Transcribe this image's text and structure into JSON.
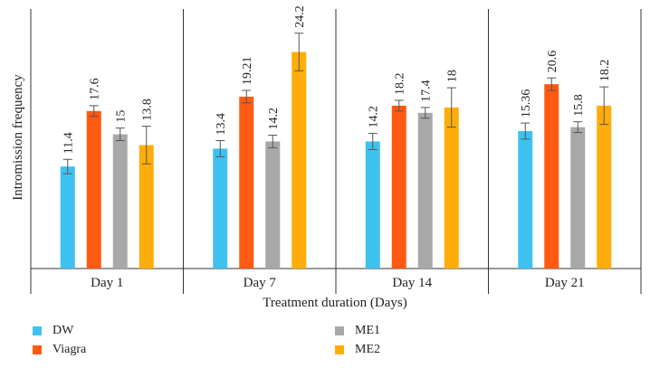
{
  "chart_data": {
    "type": "bar",
    "title": "",
    "xlabel": "Treatment duration (Days)",
    "ylabel": "Intromission frequency",
    "categories": [
      "Day 1",
      "Day 7",
      "Day 14",
      "Day 21"
    ],
    "ylim": [
      0,
      29
    ],
    "grid": false,
    "series": [
      {
        "name": "DW",
        "color": "#3fc1ef",
        "values": [
          11.4,
          13.4,
          14.2,
          15.36
        ],
        "labels": [
          "11.4",
          "13.4",
          "14.2",
          "15.36"
        ],
        "errors": [
          0.8,
          0.9,
          0.9,
          0.9
        ]
      },
      {
        "name": "Viagra",
        "color": "#ff5a12",
        "values": [
          17.6,
          19.21,
          18.2,
          20.6
        ],
        "labels": [
          "17.6",
          "19.21",
          "18.2",
          "20.6"
        ],
        "errors": [
          0.6,
          0.7,
          0.6,
          0.7
        ]
      },
      {
        "name": "ME1",
        "color": "#a8a8a8",
        "values": [
          15,
          14.2,
          17.4,
          15.8
        ],
        "labels": [
          "15",
          "14.2",
          "17.4",
          "15.8"
        ],
        "errors": [
          0.7,
          0.7,
          0.6,
          0.6
        ]
      },
      {
        "name": "ME2",
        "color": "#ffad0a",
        "values": [
          13.8,
          24.2,
          18,
          18.2
        ],
        "labels": [
          "13.8",
          "24.2",
          "18",
          "18.2"
        ],
        "errors": [
          2.1,
          2.1,
          2.2,
          2.1
        ]
      }
    ]
  }
}
